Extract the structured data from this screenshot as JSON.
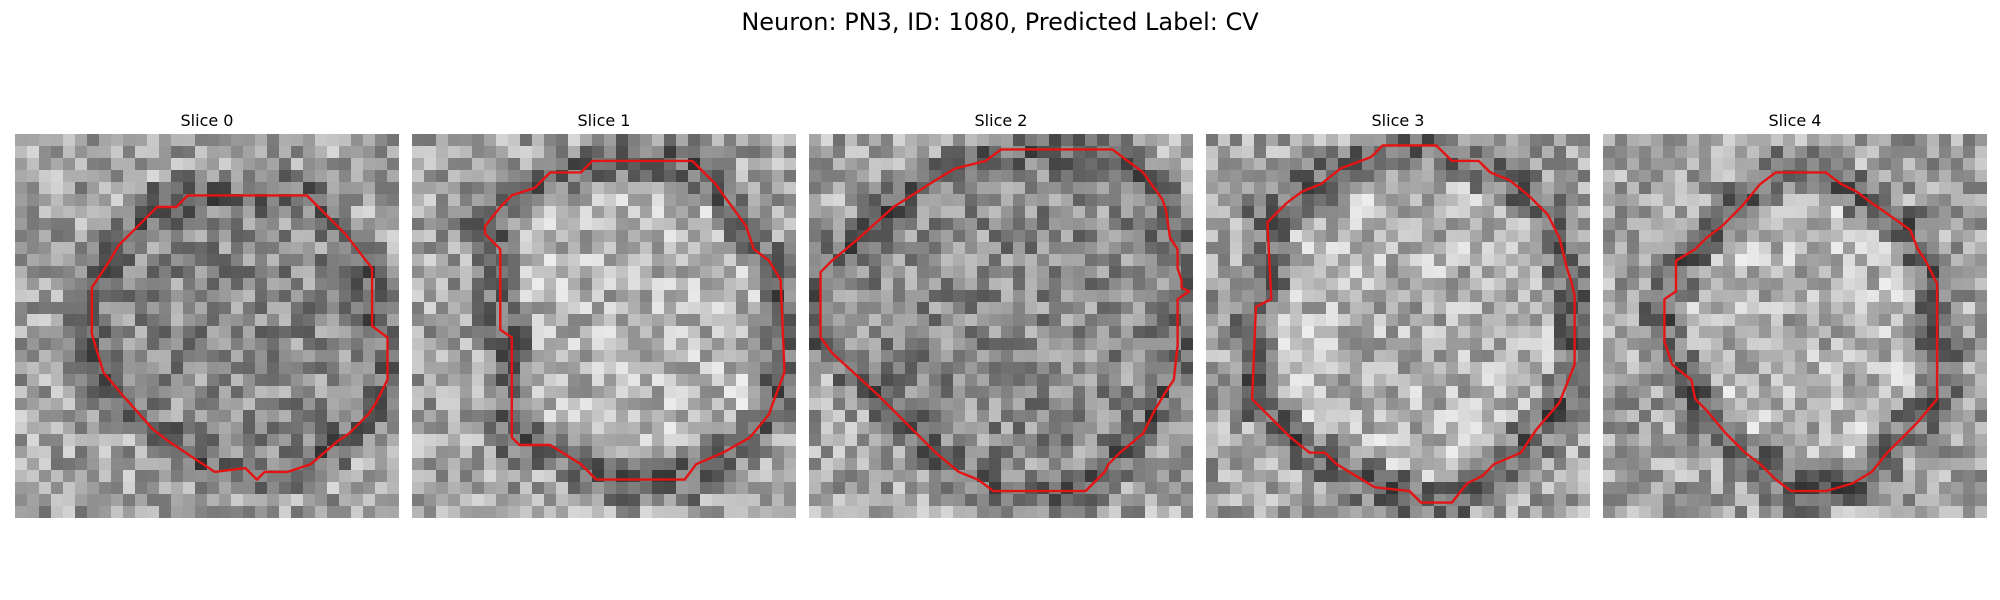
{
  "figure": {
    "title": "Neuron: PN3, ID: 1080, Predicted Label: CV",
    "contour_color": "#e41414",
    "colormap": "gray"
  },
  "slices": [
    {
      "title": "Slice 0",
      "seed": 11,
      "bright_core": false,
      "contour": [
        [
          0.45,
          0.16
        ],
        [
          0.76,
          0.16
        ],
        [
          0.8,
          0.2
        ],
        [
          0.86,
          0.26
        ],
        [
          0.93,
          0.35
        ],
        [
          0.93,
          0.5
        ],
        [
          0.97,
          0.53
        ],
        [
          0.97,
          0.64
        ],
        [
          0.94,
          0.7
        ],
        [
          0.92,
          0.73
        ],
        [
          0.87,
          0.78
        ],
        [
          0.84,
          0.8
        ],
        [
          0.77,
          0.86
        ],
        [
          0.71,
          0.88
        ],
        [
          0.65,
          0.88
        ],
        [
          0.63,
          0.9
        ],
        [
          0.6,
          0.87
        ],
        [
          0.52,
          0.88
        ],
        [
          0.46,
          0.84
        ],
        [
          0.4,
          0.8
        ],
        [
          0.36,
          0.77
        ],
        [
          0.28,
          0.68
        ],
        [
          0.23,
          0.62
        ],
        [
          0.2,
          0.52
        ],
        [
          0.2,
          0.4
        ],
        [
          0.24,
          0.34
        ],
        [
          0.27,
          0.29
        ],
        [
          0.32,
          0.24
        ],
        [
          0.37,
          0.19
        ],
        [
          0.42,
          0.19
        ]
      ]
    },
    {
      "title": "Slice 1",
      "seed": 23,
      "bright_core": true,
      "contour": [
        [
          0.36,
          0.1
        ],
        [
          0.44,
          0.1
        ],
        [
          0.47,
          0.07
        ],
        [
          0.73,
          0.07
        ],
        [
          0.76,
          0.1
        ],
        [
          0.79,
          0.13
        ],
        [
          0.87,
          0.24
        ],
        [
          0.89,
          0.3
        ],
        [
          0.93,
          0.33
        ],
        [
          0.96,
          0.38
        ],
        [
          0.97,
          0.62
        ],
        [
          0.94,
          0.7
        ],
        [
          0.93,
          0.73
        ],
        [
          0.88,
          0.79
        ],
        [
          0.81,
          0.83
        ],
        [
          0.74,
          0.86
        ],
        [
          0.71,
          0.9
        ],
        [
          0.48,
          0.9
        ],
        [
          0.44,
          0.86
        ],
        [
          0.36,
          0.81
        ],
        [
          0.28,
          0.81
        ],
        [
          0.26,
          0.79
        ],
        [
          0.26,
          0.53
        ],
        [
          0.23,
          0.51
        ],
        [
          0.23,
          0.3
        ],
        [
          0.19,
          0.26
        ],
        [
          0.19,
          0.24
        ],
        [
          0.23,
          0.19
        ],
        [
          0.26,
          0.16
        ],
        [
          0.32,
          0.14
        ]
      ]
    },
    {
      "title": "Slice 2",
      "seed": 37,
      "bright_core": false,
      "contour": [
        [
          0.5,
          0.04
        ],
        [
          0.79,
          0.04
        ],
        [
          0.83,
          0.07
        ],
        [
          0.87,
          0.1
        ],
        [
          0.92,
          0.17
        ],
        [
          0.93,
          0.2
        ],
        [
          0.94,
          0.27
        ],
        [
          0.96,
          0.3
        ],
        [
          0.96,
          0.35
        ],
        [
          0.97,
          0.38
        ],
        [
          0.97,
          0.4
        ],
        [
          0.99,
          0.41
        ],
        [
          0.96,
          0.43
        ],
        [
          0.96,
          0.55
        ],
        [
          0.95,
          0.64
        ],
        [
          0.93,
          0.67
        ],
        [
          0.9,
          0.72
        ],
        [
          0.87,
          0.78
        ],
        [
          0.81,
          0.83
        ],
        [
          0.78,
          0.86
        ],
        [
          0.77,
          0.88
        ],
        [
          0.72,
          0.93
        ],
        [
          0.48,
          0.93
        ],
        [
          0.44,
          0.9
        ],
        [
          0.39,
          0.88
        ],
        [
          0.33,
          0.83
        ],
        [
          0.27,
          0.77
        ],
        [
          0.18,
          0.68
        ],
        [
          0.06,
          0.57
        ],
        [
          0.03,
          0.53
        ],
        [
          0.03,
          0.36
        ],
        [
          0.06,
          0.33
        ],
        [
          0.12,
          0.28
        ],
        [
          0.22,
          0.19
        ],
        [
          0.33,
          0.12
        ],
        [
          0.38,
          0.09
        ],
        [
          0.46,
          0.07
        ]
      ]
    },
    {
      "title": "Slice 3",
      "seed": 53,
      "bright_core": true,
      "contour": [
        [
          0.43,
          0.06
        ],
        [
          0.46,
          0.03
        ],
        [
          0.6,
          0.03
        ],
        [
          0.64,
          0.07
        ],
        [
          0.71,
          0.07
        ],
        [
          0.74,
          0.1
        ],
        [
          0.79,
          0.12
        ],
        [
          0.84,
          0.16
        ],
        [
          0.89,
          0.21
        ],
        [
          0.92,
          0.27
        ],
        [
          0.93,
          0.31
        ],
        [
          0.94,
          0.35
        ],
        [
          0.95,
          0.38
        ],
        [
          0.96,
          0.42
        ],
        [
          0.96,
          0.6
        ],
        [
          0.94,
          0.65
        ],
        [
          0.92,
          0.7
        ],
        [
          0.86,
          0.77
        ],
        [
          0.82,
          0.83
        ],
        [
          0.75,
          0.86
        ],
        [
          0.72,
          0.89
        ],
        [
          0.68,
          0.91
        ],
        [
          0.64,
          0.96
        ],
        [
          0.56,
          0.96
        ],
        [
          0.53,
          0.93
        ],
        [
          0.44,
          0.92
        ],
        [
          0.39,
          0.89
        ],
        [
          0.34,
          0.86
        ],
        [
          0.31,
          0.83
        ],
        [
          0.27,
          0.83
        ],
        [
          0.22,
          0.79
        ],
        [
          0.12,
          0.69
        ],
        [
          0.13,
          0.45
        ],
        [
          0.17,
          0.43
        ],
        [
          0.16,
          0.23
        ],
        [
          0.21,
          0.18
        ],
        [
          0.25,
          0.15
        ],
        [
          0.3,
          0.13
        ],
        [
          0.35,
          0.09
        ]
      ]
    },
    {
      "title": "Slice 4",
      "seed": 71,
      "bright_core": true,
      "contour": [
        [
          0.45,
          0.1
        ],
        [
          0.58,
          0.1
        ],
        [
          0.62,
          0.13
        ],
        [
          0.66,
          0.15
        ],
        [
          0.7,
          0.18
        ],
        [
          0.73,
          0.2
        ],
        [
          0.8,
          0.25
        ],
        [
          0.82,
          0.3
        ],
        [
          0.84,
          0.33
        ],
        [
          0.87,
          0.39
        ],
        [
          0.87,
          0.69
        ],
        [
          0.82,
          0.75
        ],
        [
          0.74,
          0.83
        ],
        [
          0.7,
          0.88
        ],
        [
          0.65,
          0.91
        ],
        [
          0.58,
          0.93
        ],
        [
          0.49,
          0.93
        ],
        [
          0.45,
          0.9
        ],
        [
          0.41,
          0.86
        ],
        [
          0.37,
          0.83
        ],
        [
          0.32,
          0.78
        ],
        [
          0.27,
          0.72
        ],
        [
          0.24,
          0.69
        ],
        [
          0.23,
          0.64
        ],
        [
          0.18,
          0.6
        ],
        [
          0.16,
          0.54
        ],
        [
          0.16,
          0.43
        ],
        [
          0.19,
          0.41
        ],
        [
          0.19,
          0.33
        ],
        [
          0.24,
          0.3
        ],
        [
          0.27,
          0.27
        ],
        [
          0.31,
          0.24
        ],
        [
          0.36,
          0.19
        ],
        [
          0.41,
          0.13
        ]
      ]
    }
  ]
}
